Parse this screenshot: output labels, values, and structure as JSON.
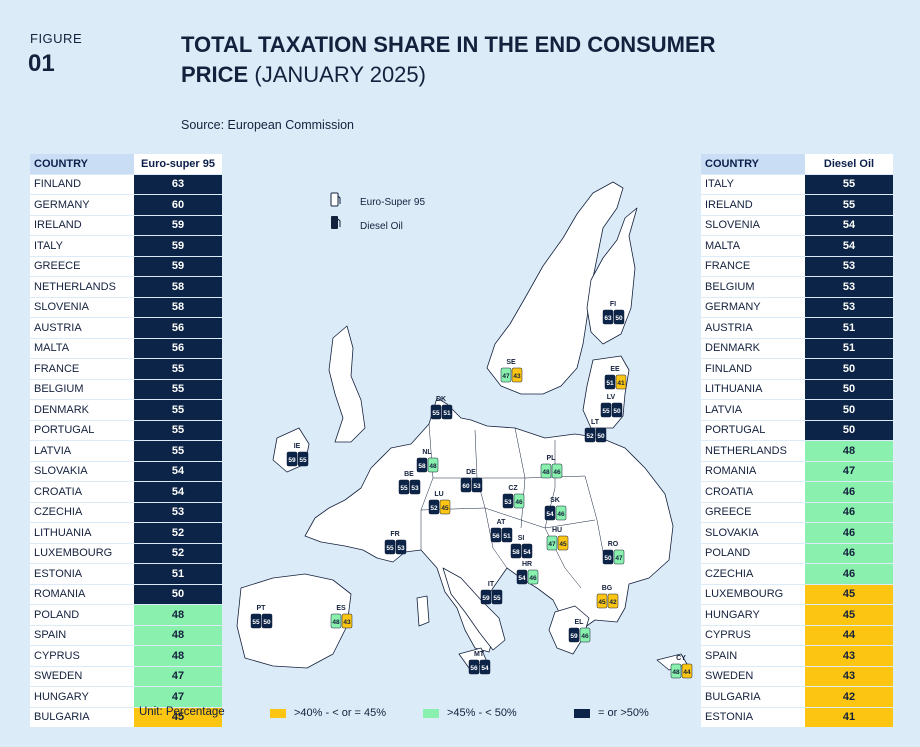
{
  "figure": {
    "label": "FIGURE",
    "number": "01"
  },
  "title": {
    "bold": "TOTAL TAXATION SHARE IN THE END CONSUMER PRICE",
    "light": "(JANUARY 2025)"
  },
  "source": "Source: European Commission",
  "unit": "Unit: Percentage",
  "colors": {
    "yellow": "#fcc511",
    "green": "#8af0ad",
    "dark": "#0c2447",
    "background": "#dcebf8"
  },
  "legend": {
    "fuel": [
      "Euro-Super 95",
      "Diesel Oil"
    ],
    "bands": [
      {
        "label": ">40% - < or = 45%",
        "color": "#fcc511"
      },
      {
        "label": ">45% - < 50%",
        "color": "#8af0ad"
      },
      {
        "label": "= or >50%",
        "color": "#0c2447"
      }
    ]
  },
  "chart_data": [
    {
      "type": "table",
      "header": [
        "COUNTRY",
        "Euro-super 95"
      ],
      "rows": [
        [
          "FINLAND",
          63
        ],
        [
          "GERMANY",
          60
        ],
        [
          "IRELAND",
          59
        ],
        [
          "ITALY",
          59
        ],
        [
          "GREECE",
          59
        ],
        [
          "NETHERLANDS",
          58
        ],
        [
          "SLOVENIA",
          58
        ],
        [
          "AUSTRIA",
          56
        ],
        [
          "MALTA",
          56
        ],
        [
          "FRANCE",
          55
        ],
        [
          "BELGIUM",
          55
        ],
        [
          "DENMARK",
          55
        ],
        [
          "PORTUGAL",
          55
        ],
        [
          "LATVIA",
          55
        ],
        [
          "SLOVAKIA",
          54
        ],
        [
          "CROATIA",
          54
        ],
        [
          "CZECHIA",
          53
        ],
        [
          "LITHUANIA",
          52
        ],
        [
          "LUXEMBOURG",
          52
        ],
        [
          "ESTONIA",
          51
        ],
        [
          "ROMANIA",
          50
        ],
        [
          "POLAND",
          48
        ],
        [
          "SPAIN",
          48
        ],
        [
          "CYPRUS",
          48
        ],
        [
          "SWEDEN",
          47
        ],
        [
          "HUNGARY",
          47
        ],
        [
          "BULGARIA",
          45
        ]
      ]
    },
    {
      "type": "table",
      "header": [
        "COUNTRY",
        "Diesel Oil"
      ],
      "rows": [
        [
          "ITALY",
          55
        ],
        [
          "IRELAND",
          55
        ],
        [
          "SLOVENIA",
          54
        ],
        [
          "MALTA",
          54
        ],
        [
          "FRANCE",
          53
        ],
        [
          "BELGIUM",
          53
        ],
        [
          "GERMANY",
          53
        ],
        [
          "AUSTRIA",
          51
        ],
        [
          "DENMARK",
          51
        ],
        [
          "FINLAND",
          50
        ],
        [
          "LITHUANIA",
          50
        ],
        [
          "LATVIA",
          50
        ],
        [
          "PORTUGAL",
          50
        ],
        [
          "NETHERLANDS",
          48
        ],
        [
          "ROMANIA",
          47
        ],
        [
          "CROATIA",
          46
        ],
        [
          "GREECE",
          46
        ],
        [
          "SLOVAKIA",
          46
        ],
        [
          "POLAND",
          46
        ],
        [
          "CZECHIA",
          46
        ],
        [
          "LUXEMBOURG",
          45
        ],
        [
          "HUNGARY",
          45
        ],
        [
          "CYPRUS",
          44
        ],
        [
          "SPAIN",
          43
        ],
        [
          "SWEDEN",
          43
        ],
        [
          "BULGARIA",
          42
        ],
        [
          "ESTONIA",
          41
        ]
      ]
    },
    {
      "type": "map",
      "markers": [
        {
          "code": "FI",
          "petrol": 63,
          "diesel": 50
        },
        {
          "code": "SE",
          "petrol": 47,
          "diesel": 43
        },
        {
          "code": "EE",
          "petrol": 51,
          "diesel": 41
        },
        {
          "code": "LV",
          "petrol": 55,
          "diesel": 50
        },
        {
          "code": "LT",
          "petrol": 52,
          "diesel": 50
        },
        {
          "code": "DK",
          "petrol": 55,
          "diesel": 51
        },
        {
          "code": "IE",
          "petrol": 59,
          "diesel": 55
        },
        {
          "code": "NL",
          "petrol": 58,
          "diesel": 48
        },
        {
          "code": "BE",
          "petrol": 55,
          "diesel": 53
        },
        {
          "code": "LU",
          "petrol": 52,
          "diesel": 45
        },
        {
          "code": "DE",
          "petrol": 60,
          "diesel": 53
        },
        {
          "code": "PL",
          "petrol": 48,
          "diesel": 46
        },
        {
          "code": "CZ",
          "petrol": 53,
          "diesel": 46
        },
        {
          "code": "SK",
          "petrol": 54,
          "diesel": 46
        },
        {
          "code": "AT",
          "petrol": 56,
          "diesel": 51
        },
        {
          "code": "HU",
          "petrol": 47,
          "diesel": 45
        },
        {
          "code": "RO",
          "petrol": 50,
          "diesel": 47
        },
        {
          "code": "SI",
          "petrol": 58,
          "diesel": 54
        },
        {
          "code": "HR",
          "petrol": 54,
          "diesel": 46
        },
        {
          "code": "FR",
          "petrol": 55,
          "diesel": 53
        },
        {
          "code": "IT",
          "petrol": 59,
          "diesel": 55
        },
        {
          "code": "BG",
          "petrol": 45,
          "diesel": 42
        },
        {
          "code": "EL",
          "petrol": 59,
          "diesel": 46
        },
        {
          "code": "PT",
          "petrol": 55,
          "diesel": 50
        },
        {
          "code": "ES",
          "petrol": 48,
          "diesel": 43
        },
        {
          "code": "MT",
          "petrol": 56,
          "diesel": 54
        },
        {
          "code": "CY",
          "petrol": 48,
          "diesel": 44
        }
      ]
    }
  ]
}
